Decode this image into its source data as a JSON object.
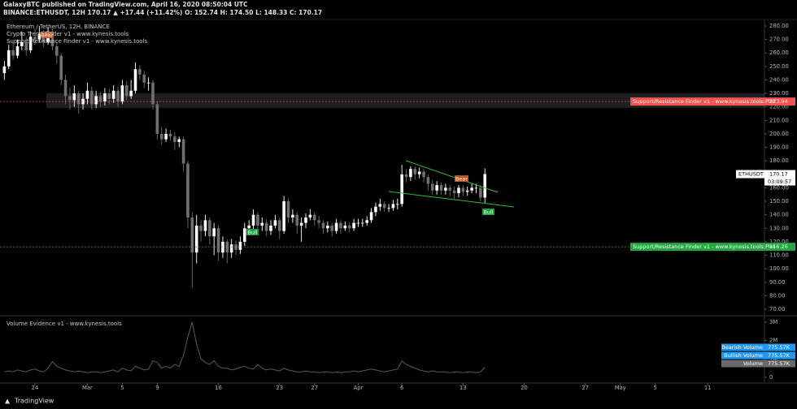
{
  "header": {
    "published": "GalaxyBTC published on TradingView.com, April 16, 2020 08:50:04 UTC",
    "quote": "BINANCE:ETHUSDT, 12H 170.17 ▲ +17.44 (+11.42%) O: 152.74 H: 174.50 L: 148.33 C: 170.17"
  },
  "footer": {
    "brand": "TradingView"
  },
  "chart_data": {
    "type": "candlestick",
    "title": "Ethereum / TetherUS, 12H, BINANCE",
    "indicators": [
      "Crypto Trend Finder v1 - www.kynesis.tools",
      "Support/Resistance Finder v1 - www.kynesis.tools"
    ],
    "up_color": "#ffffff",
    "down_color": "#6f6f6f",
    "xlim": [
      -1,
      174
    ],
    "xticks": [
      {
        "value": 7,
        "label": "24"
      },
      {
        "value": 19,
        "label": "Mar"
      },
      {
        "value": 27,
        "label": "5"
      },
      {
        "value": 35,
        "label": "9"
      },
      {
        "value": 49,
        "label": "16"
      },
      {
        "value": 63,
        "label": "23"
      },
      {
        "value": 71,
        "label": "27"
      },
      {
        "value": 81,
        "label": "Apr"
      },
      {
        "value": 91,
        "label": "6"
      },
      {
        "value": 105,
        "label": "13"
      },
      {
        "value": 119,
        "label": "20"
      },
      {
        "value": 133,
        "label": "27"
      },
      {
        "value": 141,
        "label": "May"
      },
      {
        "value": 149,
        "label": "5"
      },
      {
        "value": 161,
        "label": "11"
      }
    ],
    "ylim": [
      65.8,
      283.6
    ],
    "yticks": [
      {
        "value": 70,
        "label": "70.00"
      },
      {
        "value": 80,
        "label": "80.00"
      },
      {
        "value": 90,
        "label": "90.00"
      },
      {
        "value": 100,
        "label": "100.00"
      },
      {
        "value": 110,
        "label": "110.00"
      },
      {
        "value": 120,
        "label": "120.00"
      },
      {
        "value": 130,
        "label": "130.00"
      },
      {
        "value": 140,
        "label": "140.00"
      },
      {
        "value": 150,
        "label": "150.00"
      },
      {
        "value": 160,
        "label": "160.00"
      },
      {
        "value": 170,
        "label": "170.00"
      },
      {
        "value": 180,
        "label": "180.00"
      },
      {
        "value": 190,
        "label": "190.00"
      },
      {
        "value": 200,
        "label": "200.00"
      },
      {
        "value": 210,
        "label": "210.00"
      },
      {
        "value": 220,
        "label": "220.00"
      },
      {
        "value": 230,
        "label": "230.00"
      },
      {
        "value": 240,
        "label": "240.00"
      },
      {
        "value": 250,
        "label": "250.00"
      },
      {
        "value": 260,
        "label": "260.00"
      },
      {
        "value": 270,
        "label": "270.00"
      },
      {
        "value": 280,
        "label": "280.00"
      }
    ],
    "open": [
      245,
      250,
      262,
      258,
      265,
      268,
      262,
      272,
      270,
      274,
      268,
      276,
      265,
      258,
      240,
      228,
      225,
      230,
      222,
      226,
      232,
      222,
      228,
      224,
      230,
      226,
      232,
      224,
      236,
      228,
      232,
      248,
      244,
      238,
      238,
      222,
      200,
      196,
      200,
      198,
      194,
      196,
      178,
      138,
      112,
      132,
      128,
      136,
      124,
      130,
      112,
      120,
      112,
      118,
      114,
      120,
      130,
      132,
      140,
      132,
      134,
      128,
      132,
      136,
      128,
      150,
      138,
      140,
      132,
      134,
      138,
      140,
      136,
      134,
      130,
      132,
      128,
      134,
      130,
      132,
      130,
      134,
      134,
      134,
      136,
      142,
      146,
      148,
      145,
      145,
      148,
      148,
      170,
      168,
      174,
      170,
      172,
      168,
      163,
      158,
      162,
      158,
      160,
      158,
      156,
      160,
      157,
      158,
      160,
      160,
      152.74
    ],
    "high": [
      254,
      266,
      268,
      270,
      276,
      272,
      276,
      278,
      280,
      277,
      279,
      278,
      268,
      260,
      244,
      234,
      236,
      232,
      230,
      238,
      235,
      232,
      231,
      234,
      233,
      236,
      235,
      240,
      239,
      240,
      253,
      251,
      247,
      242,
      240,
      224,
      205,
      204,
      203,
      201,
      198,
      198,
      180,
      142,
      140,
      136,
      140,
      138,
      134,
      132,
      124,
      122,
      122,
      121,
      124,
      134,
      136,
      144,
      142,
      138,
      137,
      136,
      140,
      138,
      154,
      152,
      144,
      142,
      138,
      141,
      144,
      142,
      139,
      136,
      135,
      134,
      137,
      136,
      135,
      134,
      137,
      137,
      137,
      139,
      145,
      149,
      152,
      150,
      148,
      151,
      152,
      177,
      174,
      176,
      176,
      175,
      174,
      170,
      166,
      165,
      164,
      163,
      162,
      161,
      162,
      162,
      161,
      163,
      163,
      162,
      174.5
    ],
    "low": [
      240,
      248,
      255,
      256,
      262,
      258,
      260,
      266,
      268,
      264,
      266,
      262,
      252,
      236,
      222,
      218,
      220,
      215,
      218,
      222,
      218,
      219,
      220,
      221,
      222,
      223,
      220,
      222,
      225,
      226,
      230,
      240,
      234,
      232,
      218,
      196,
      192,
      194,
      195,
      188,
      190,
      172,
      130,
      86,
      104,
      120,
      124,
      118,
      110,
      106,
      108,
      104,
      108,
      110,
      111,
      117,
      126,
      128,
      128,
      128,
      124,
      125,
      130,
      122,
      126,
      134,
      134,
      126,
      120,
      130,
      136,
      132,
      130,
      126,
      127,
      124,
      126,
      126,
      128,
      127,
      128,
      131,
      131,
      132,
      134,
      139,
      143,
      142,
      142,
      143,
      144,
      146,
      164,
      165,
      166,
      167,
      164,
      158,
      155,
      155,
      155,
      155,
      154,
      152,
      153,
      154,
      154,
      156,
      156,
      150,
      148.33
    ],
    "close": [
      250,
      262,
      258,
      265,
      268,
      262,
      272,
      270,
      274,
      268,
      276,
      265,
      258,
      240,
      228,
      225,
      230,
      222,
      226,
      232,
      222,
      228,
      224,
      230,
      226,
      232,
      224,
      236,
      228,
      232,
      248,
      244,
      238,
      238,
      222,
      200,
      196,
      200,
      198,
      194,
      196,
      178,
      138,
      112,
      132,
      128,
      136,
      124,
      130,
      112,
      120,
      112,
      118,
      114,
      120,
      130,
      132,
      140,
      132,
      134,
      128,
      132,
      136,
      128,
      150,
      138,
      140,
      132,
      134,
      138,
      140,
      136,
      134,
      130,
      132,
      128,
      134,
      130,
      132,
      130,
      134,
      134,
      134,
      136,
      142,
      146,
      148,
      145,
      145,
      148,
      148,
      170,
      168,
      174,
      170,
      172,
      168,
      163,
      158,
      162,
      158,
      160,
      158,
      156,
      160,
      157,
      158,
      160,
      160,
      152.74,
      170.17
    ],
    "levels": [
      {
        "name": "Support/Resistance Finder v1 - www.kynesis.tools:Plot",
        "value": 223.94,
        "color": "#f05350"
      },
      {
        "name": "Support/Resistance Finder v1 - www.kynesis.tools:Plot",
        "value": 116.26,
        "color": "#26a641"
      }
    ],
    "last_price": {
      "symbol": "ETHUSDT",
      "value": 170.17,
      "countdown": "03:09:57"
    },
    "annotations": [
      {
        "text": "Bear",
        "color": "#b5532a"
      },
      {
        "text": "Bull",
        "color": "#1f9d3a"
      },
      {
        "text": "Bear",
        "color": "#b5532a"
      },
      {
        "text": "Bull",
        "color": "#1f9d3a"
      }
    ],
    "volume": {
      "name": "Volume Evidence v1 - www.kynesis.tools",
      "color": "#5a5a5a",
      "values": [
        300000,
        350000,
        300000,
        400000,
        350000,
        300000,
        400000,
        450000,
        350000,
        300000,
        500000,
        850000,
        600000,
        500000,
        400000,
        350000,
        300000,
        350000,
        300000,
        250000,
        300000,
        300000,
        250000,
        300000,
        350000,
        400000,
        300000,
        500000,
        400000,
        350000,
        600000,
        500000,
        400000,
        450000,
        900000,
        800000,
        500000,
        600000,
        500000,
        700000,
        600000,
        1200000,
        2200000,
        3000000,
        1800000,
        1000000,
        800000,
        700000,
        900000,
        600000,
        500000,
        500000,
        400000,
        450000,
        550000,
        600000,
        500000,
        450000,
        700000,
        500000,
        400000,
        450000,
        400000,
        350000,
        500000,
        400000,
        350000,
        300000,
        300000,
        350000,
        300000,
        300000,
        250000,
        300000,
        300000,
        250000,
        300000,
        250000,
        300000,
        300000,
        350000,
        300000,
        350000,
        400000,
        450000,
        400000,
        350000,
        300000,
        350000,
        400000,
        450000,
        900000,
        700000,
        600000,
        500000,
        400000,
        350000,
        300000,
        350000,
        300000,
        300000,
        300000,
        250000,
        300000,
        300000,
        250000,
        300000,
        300000,
        250000,
        300000,
        550000
      ],
      "ylim": [
        -220000,
        3260000
      ],
      "yticks": [
        0,
        {
          "value": 1000000,
          "label": "1M"
        },
        {
          "value": 2000000,
          "label": "2M"
        },
        {
          "value": 3000000,
          "label": "3M"
        }
      ],
      "legend": [
        {
          "name": "Bearish Volume",
          "label": "775.57K",
          "color": "#2196f3"
        },
        {
          "name": "Bullish Volume",
          "label": "775.57K",
          "color": "#2196f3"
        },
        {
          "name": "Volume",
          "label": "775.57K",
          "color": "#6a6a6a"
        }
      ]
    }
  }
}
